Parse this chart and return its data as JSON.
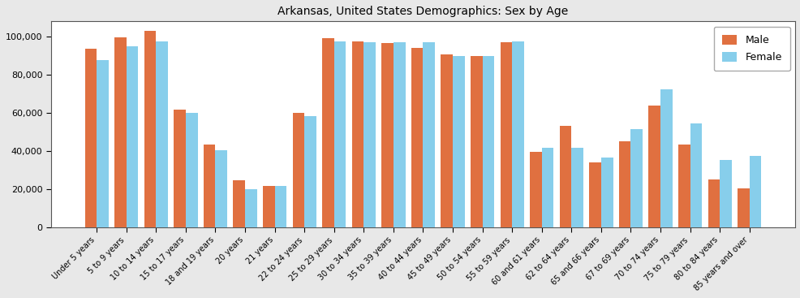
{
  "title": "Arkansas, United States Demographics: Sex by Age",
  "categories": [
    "Under 5 years",
    "5 to 9 years",
    "10 to 14 years",
    "15 to 17 years",
    "18 and 19 years",
    "20 years",
    "21 years",
    "22 to 24 years",
    "25 to 29 years",
    "30 to 34 years",
    "35 to 39 years",
    "40 to 44 years",
    "45 to 49 years",
    "50 to 54 years",
    "55 to 59 years",
    "60 and 61 years",
    "62 to 64 years",
    "65 and 66 years",
    "67 to 69 years",
    "70 to 74 years",
    "75 to 79 years",
    "80 to 84 years",
    "85 years and over"
  ],
  "male": [
    93500,
    99500,
    103000,
    61500,
    43500,
    24500,
    21500,
    60000,
    99000,
    97500,
    96500,
    94000,
    90500,
    90000,
    97000,
    39500,
    53000,
    34000,
    45000,
    64000,
    43500,
    25000,
    20500
  ],
  "female": [
    87500,
    95000,
    97500,
    60000,
    40500,
    20000,
    21500,
    58500,
    97500,
    97000,
    97000,
    97000,
    90000,
    90000,
    97500,
    41500,
    41500,
    36500,
    51500,
    72500,
    54500,
    35500,
    37500
  ],
  "male_color": "#E07040",
  "female_color": "#87CEEB",
  "figure_facecolor": "#e8e8e8",
  "axes_facecolor": "#ffffff",
  "ylim": [
    0,
    108000
  ],
  "ytick_step": 20000,
  "bar_width": 0.4,
  "figsize": [
    9.87,
    3.67
  ],
  "dpi": 100,
  "title_fontsize": 10,
  "tick_fontsize": 7,
  "legend_fontsize": 9
}
